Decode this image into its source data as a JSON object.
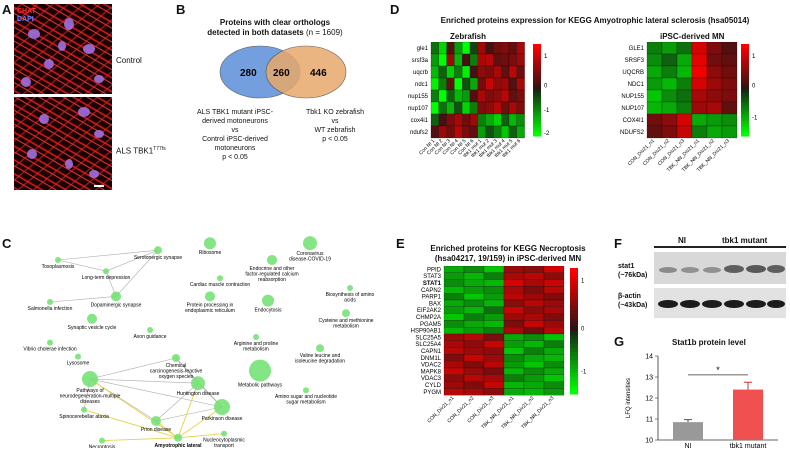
{
  "panels": {
    "A": "A",
    "B": "B",
    "C": "C",
    "D": "D",
    "E": "E",
    "F": "F",
    "G": "G"
  },
  "panelA": {
    "legend_chat": "CHAT",
    "legend_dapi": "DAPI",
    "label_control": "Control",
    "label_als": "ALS TBK1",
    "label_als_sup": "T77fs"
  },
  "panelB": {
    "title_line1": "Proteins with clear orthologs",
    "title_line2": "detected in both datasets",
    "title_n": "(n = 1609)",
    "left_only": "280",
    "overlap": "260",
    "right_only": "446",
    "left_caption": [
      "ALS TBK1 mutant iPSC-",
      "derived motoneurons",
      "vs",
      "Control iPSC-derived",
      "motoneurons",
      "p < 0.05"
    ],
    "right_caption": [
      "Tbk1 KO zebrafish",
      "vs",
      "WT zebrafish",
      "p < 0.05"
    ],
    "colors": {
      "left": "#5b8fd9",
      "right": "#e7a96a"
    }
  },
  "panelC": {
    "nodes": [
      {
        "id": "toxo",
        "label": "Toxoplasmosis"
      },
      {
        "id": "sero",
        "label": "Serotonergic synapse"
      },
      {
        "id": "ribo",
        "label": "Ribosome"
      },
      {
        "id": "covid",
        "label": "Coronavirus disease-COVID-19"
      },
      {
        "id": "ltd",
        "label": "Long-term depression"
      },
      {
        "id": "endo_hormone",
        "label": "Endocrine and other factor-regulated calcium reabsorption"
      },
      {
        "id": "cardiac",
        "label": "Cardiac muscle contraction"
      },
      {
        "id": "salmonella",
        "label": "Salmonella infection"
      },
      {
        "id": "dopa",
        "label": "Dopaminergic synapse"
      },
      {
        "id": "protein_er",
        "label": "Protein processing in endoplasmic reticulum"
      },
      {
        "id": "endocytosis",
        "label": "Endocytosis"
      },
      {
        "id": "biosyn",
        "label": "Biosynthesis of amino acids"
      },
      {
        "id": "cysteine",
        "label": "Cysteine and methionine metabolism"
      },
      {
        "id": "synaptic",
        "label": "Synaptic vesicle cycle"
      },
      {
        "id": "axon",
        "label": "Axon guidance"
      },
      {
        "id": "arginine",
        "label": "Arginine and proline metabolism"
      },
      {
        "id": "vibrio",
        "label": "Vibrio cholerae infection"
      },
      {
        "id": "valine",
        "label": "Valine leucine and isoleucine degradation"
      },
      {
        "id": "lysosome",
        "label": "Lysosome"
      },
      {
        "id": "chemical",
        "label": "Chemical carcinogenesis-reactive oxygen species"
      },
      {
        "id": "metabolic",
        "label": "Metabolic pathways"
      },
      {
        "id": "neurodegen",
        "label": "Pathways of neurodegeneration-multiple diseases"
      },
      {
        "id": "huntington",
        "label": "Huntington disease"
      },
      {
        "id": "amino_sugar",
        "label": "Amino sugar and nucleotide sugar metabolism"
      },
      {
        "id": "sca",
        "label": "Spinocerebellar ataxia"
      },
      {
        "id": "parkinson",
        "label": "Parkinson disease"
      },
      {
        "id": "prion",
        "label": "Prion disease"
      },
      {
        "id": "nucleo",
        "label": "Nucleocytoplasmic transport"
      },
      {
        "id": "necroptosis",
        "label": "Necroptosis"
      },
      {
        "id": "als",
        "label": "Amyotrophic lateral sclerosis"
      }
    ]
  },
  "panelD": {
    "title": "Enriched proteins expression for KEGG Amyotrophic lateral sclerosis (hsa05014)",
    "zebrafish_title": "Zebrafish",
    "ipsc_title": "iPSC-derived MN",
    "zf_genes": [
      "gle1",
      "srsf3a",
      "uqcrb",
      "ndc1",
      "nup155",
      "nup107",
      "cox4i1",
      "ndufs2"
    ],
    "zf_samples": [
      "Con NI 1",
      "Con NI 2",
      "Con NI 3",
      "Con NI 4",
      "Con NI 5",
      "Con NI 6",
      "tbk1 mut 1",
      "tbk1 mut 2",
      "tbk1 mut 3",
      "tbk1 mut 4",
      "tbk1 mut 5",
      "tbk1 mut 6"
    ],
    "zf_values": [
      [
        -0.5,
        -1.2,
        0.3,
        -0.8,
        -1.5,
        -0.2,
        0.8,
        0.2,
        0.5,
        0.6,
        0.4,
        0.9
      ],
      [
        -0.8,
        -1.6,
        0.8,
        -1.0,
        0.2,
        -0.6,
        0.9,
        1.0,
        0.4,
        0.5,
        0.6,
        0.8
      ],
      [
        -1.0,
        -0.4,
        -1.2,
        -0.6,
        -1.4,
        0.2,
        0.7,
        0.6,
        0.9,
        0.4,
        1.0,
        0.5
      ],
      [
        -1.4,
        -0.6,
        0.4,
        -1.8,
        -0.3,
        -0.9,
        0.5,
        1.1,
        0.7,
        0.8,
        0.3,
        0.9
      ],
      [
        -0.6,
        -1.8,
        -0.4,
        -1.0,
        -0.8,
        0.3,
        0.9,
        0.6,
        0.7,
        1.0,
        0.4,
        0.6
      ],
      [
        -1.8,
        -0.5,
        -1.0,
        -0.3,
        -1.2,
        -0.6,
        0.6,
        0.7,
        1.0,
        0.5,
        0.9,
        0.6
      ],
      [
        -0.4,
        0.2,
        0.6,
        0.9,
        0.5,
        0.8,
        -0.6,
        -0.9,
        -1.2,
        -0.4,
        -1.0,
        -0.7
      ],
      [
        0.3,
        0.8,
        0.5,
        1.0,
        0.6,
        0.4,
        -0.8,
        -0.3,
        -0.6,
        -1.1,
        -0.4,
        -0.9
      ]
    ],
    "zf_scale": {
      "max": "1",
      "mid": "0",
      "m1": "-1",
      "m2": "-2"
    },
    "ipsc_genes": [
      "GLE1",
      "SRSF3",
      "UQCRB",
      "NDC1",
      "NUP155",
      "NUP107",
      "COX4I1",
      "NDUFS2"
    ],
    "ipsc_samples": [
      "CON_Div21_n1",
      "CON_Div21_n2",
      "CON_Div21_n3",
      "TBK_NN_Div21_n1",
      "TBK_NN_Div21_n2",
      "TBK_NN_Div21_n3"
    ],
    "ipsc_values": [
      [
        -0.6,
        -0.8,
        -0.5,
        1.2,
        0.6,
        0.3
      ],
      [
        -0.7,
        -0.4,
        -0.9,
        1.3,
        0.5,
        0.4
      ],
      [
        -0.9,
        -0.6,
        -1.0,
        1.4,
        0.7,
        0.5
      ],
      [
        -0.8,
        -1.0,
        -0.6,
        1.2,
        0.8,
        0.6
      ],
      [
        -1.1,
        -0.7,
        -0.5,
        0.9,
        0.7,
        0.6
      ],
      [
        -1.0,
        -0.9,
        -0.6,
        0.8,
        0.9,
        0.4
      ],
      [
        0.5,
        0.7,
        1.2,
        -0.9,
        -0.8,
        -0.7
      ],
      [
        0.4,
        0.6,
        1.1,
        -0.6,
        -0.9,
        -0.8
      ]
    ],
    "ipsc_scale": {
      "max": "1",
      "mid": "0",
      "m1": "-1"
    }
  },
  "panelE": {
    "title_line1": "Enriched proteins for KEGG Necroptosis",
    "title_line2": "(hsa04217, 19/159) in iPSC-derived MN",
    "genes": [
      "PPID",
      "STAT3",
      "STAT1",
      "CAPN2",
      "PARP1",
      "BAX",
      "EIF2AK2",
      "CHMP2A",
      "PGAM5",
      "HSP90AB1",
      "SLC25A5",
      "SLC25A4",
      "CAPN1",
      "DNM1L",
      "VDAC2",
      "MAPK8",
      "VDAC3",
      "CYLD",
      "PYGM"
    ],
    "bold_gene": "STAT1",
    "samples": [
      "CON_Div21_n1",
      "CON_Div21_n2",
      "CON_Div21_n3",
      "TBK_NN_Div21_n1",
      "TBK_NN_Div21_n2",
      "TBK_NN_Div21_n3"
    ],
    "values": [
      [
        -0.9,
        -0.7,
        -1.1,
        0.8,
        0.7,
        1.2
      ],
      [
        -0.8,
        -1.0,
        -0.6,
        0.9,
        1.0,
        0.7
      ],
      [
        -0.7,
        -0.9,
        -1.0,
        1.2,
        0.9,
        1.1
      ],
      [
        -1.0,
        -0.8,
        -0.7,
        0.9,
        0.6,
        1.0
      ],
      [
        -0.6,
        -1.1,
        -0.8,
        1.0,
        0.8,
        0.6
      ],
      [
        -0.9,
        -0.7,
        -1.0,
        0.7,
        1.0,
        0.8
      ],
      [
        -0.8,
        -1.0,
        -0.5,
        1.1,
        0.7,
        0.9
      ],
      [
        -1.1,
        -0.6,
        -0.8,
        0.8,
        0.9,
        0.6
      ],
      [
        -0.7,
        -0.9,
        -1.0,
        0.6,
        1.1,
        0.8
      ],
      [
        -1.0,
        -0.8,
        -0.6,
        0.9,
        0.5,
        1.0
      ],
      [
        0.8,
        1.0,
        0.6,
        -0.9,
        -0.7,
        -1.1
      ],
      [
        0.9,
        0.7,
        1.1,
        -0.8,
        -1.0,
        -0.6
      ],
      [
        1.0,
        0.8,
        0.7,
        -1.1,
        -0.6,
        -0.9
      ],
      [
        0.6,
        1.1,
        0.8,
        -0.7,
        -0.9,
        -1.0
      ],
      [
        0.9,
        0.6,
        1.0,
        -0.8,
        -1.1,
        -0.7
      ],
      [
        1.1,
        0.8,
        0.6,
        -1.0,
        -0.7,
        -0.9
      ],
      [
        0.7,
        1.0,
        0.9,
        -0.6,
        -0.8,
        -1.1
      ],
      [
        0.8,
        0.6,
        1.1,
        -1.0,
        -0.9,
        -0.7
      ],
      [
        1.0,
        0.9,
        0.7,
        -0.9,
        -1.0,
        -0.8
      ]
    ],
    "scale": {
      "max": "1",
      "mid": "0",
      "m1": "-1"
    }
  },
  "panelF": {
    "group_ni": "NI",
    "group_tbk1": "tbk1 mutant",
    "band1_name": "stat1",
    "band1_size": "(~76kDa)",
    "band2_name": "β-actin",
    "band2_size": "(~43kDa)"
  },
  "chart_data": {
    "type": "bar",
    "title": "Stat1b protein level",
    "categories": [
      "NI",
      "tbk1 mutant"
    ],
    "values": [
      10.85,
      12.4
    ],
    "errors": [
      0.12,
      0.35
    ],
    "ylabel": "LFQ intensities",
    "ylim": [
      10,
      14
    ],
    "yticks": [
      "10",
      "11",
      "12",
      "13",
      "14"
    ],
    "significance": "*",
    "colors": [
      "#999999",
      "#f05050"
    ]
  }
}
